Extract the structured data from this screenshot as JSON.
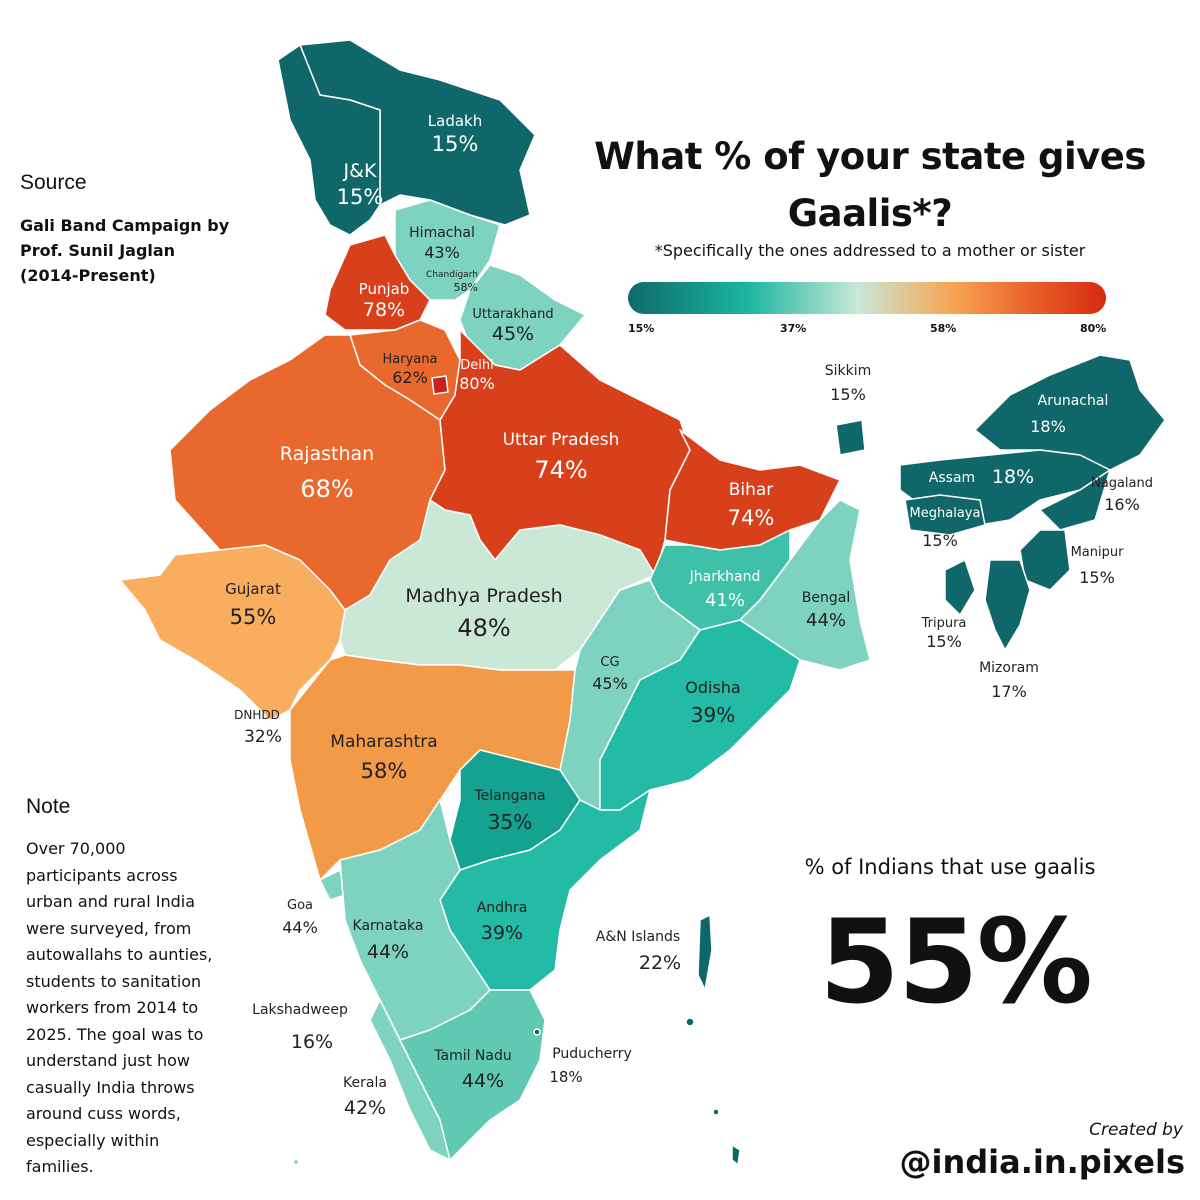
{
  "title": "What % of your state gives Gaalis*?",
  "subtitle": "*Specifically the ones addressed to a mother or sister",
  "legend": {
    "ticks": [
      "15%",
      "37%",
      "58%",
      "80%"
    ]
  },
  "source": {
    "heading": "Source",
    "text": "Gali Band Campaign by\nProf. Sunil Jaglan\n(2014-Present)"
  },
  "note": {
    "heading": "Note",
    "text": "Over 70,000 participants across urban and rural India were surveyed, from autowallahs to aunties, students to sanitation workers from 2014 to 2025. The goal was to understand just how casually India throws around cuss words, especially within families."
  },
  "national": {
    "label": "% of Indians that use gaalis",
    "value": "55%"
  },
  "credit": {
    "small": "Created by",
    "handle": "@india.in.pixels"
  },
  "colors": {
    "dark_teal": "#0f676a",
    "teal": "#23bba5",
    "mint": "#7dd3bf",
    "pale": "#cbe7d5",
    "orange_light": "#f9ad5f",
    "orange": "#f39a48",
    "orange_dark": "#e8682d",
    "red": "#d8401c"
  },
  "regions": [
    {
      "name": "Ladakh",
      "value": "15%"
    },
    {
      "name": "J&K",
      "value": "15%"
    },
    {
      "name": "Himachal",
      "value": "43%"
    },
    {
      "name": "Chandigarh",
      "value": "58%"
    },
    {
      "name": "Punjab",
      "value": "78%"
    },
    {
      "name": "Uttarakhand",
      "value": "45%"
    },
    {
      "name": "Haryana",
      "value": "62%"
    },
    {
      "name": "Delhi",
      "value": "80%"
    },
    {
      "name": "Rajasthan",
      "value": "68%"
    },
    {
      "name": "Uttar Pradesh",
      "value": "74%"
    },
    {
      "name": "Bihar",
      "value": "74%"
    },
    {
      "name": "Sikkim",
      "value": "15%"
    },
    {
      "name": "Arunachal",
      "value": "18%"
    },
    {
      "name": "Assam",
      "value": "18%"
    },
    {
      "name": "Nagaland",
      "value": "16%"
    },
    {
      "name": "Meghalaya",
      "value": "15%"
    },
    {
      "name": "Manipur",
      "value": "15%"
    },
    {
      "name": "Tripura",
      "value": "15%"
    },
    {
      "name": "Mizoram",
      "value": "17%"
    },
    {
      "name": "Gujarat",
      "value": "55%"
    },
    {
      "name": "Madhya Pradesh",
      "value": "48%"
    },
    {
      "name": "Jharkhand",
      "value": "41%"
    },
    {
      "name": "Bengal",
      "value": "44%"
    },
    {
      "name": "CG",
      "value": "45%"
    },
    {
      "name": "Odisha",
      "value": "39%"
    },
    {
      "name": "DNHDD",
      "value": "32%"
    },
    {
      "name": "Maharashtra",
      "value": "58%"
    },
    {
      "name": "Telangana",
      "value": "35%"
    },
    {
      "name": "Goa",
      "value": "44%"
    },
    {
      "name": "Karnataka",
      "value": "44%"
    },
    {
      "name": "Andhra",
      "value": "39%"
    },
    {
      "name": "A&N Islands",
      "value": "22%"
    },
    {
      "name": "Lakshadweep",
      "value": "16%"
    },
    {
      "name": "Tamil Nadu",
      "value": "44%"
    },
    {
      "name": "Puducherry",
      "value": "18%"
    },
    {
      "name": "Kerala",
      "value": "42%"
    }
  ]
}
